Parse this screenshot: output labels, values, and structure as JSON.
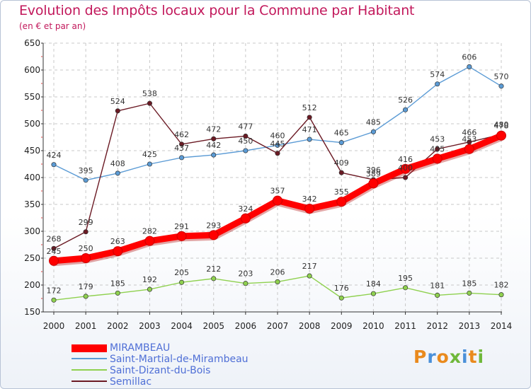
{
  "title": "Evolution des Impôts locaux pour la Commune par Habitant",
  "subtitle": "(en € et par an)",
  "logo": {
    "letters": [
      "P",
      "r",
      "o",
      "x",
      "i",
      "t",
      "i"
    ],
    "colors": [
      "#e98a1d",
      "#4a90d9",
      "#e98a1d",
      "#6fb83a",
      "#4a90d9",
      "#e98a1d",
      "#6fb83a"
    ]
  },
  "chart_data": {
    "type": "line",
    "title": "Evolution des Impôts locaux pour la Commune par Habitant",
    "subtitle": "(en € et par an)",
    "xlabel": "",
    "ylabel": "",
    "x": [
      "2000",
      "2001",
      "2002",
      "2003",
      "2004",
      "2005",
      "2006",
      "2007",
      "2008",
      "2009",
      "2010",
      "2011",
      "2012",
      "2013",
      "2014"
    ],
    "ylim": [
      150,
      650
    ],
    "yticks": [
      150,
      200,
      250,
      300,
      350,
      400,
      450,
      500,
      550,
      600,
      650
    ],
    "grid": true,
    "series": [
      {
        "name": "Saint-Dizant-du-Bois",
        "color": "#8fd14f",
        "values": [
          172,
          179,
          185,
          192,
          205,
          212,
          203,
          206,
          217,
          176,
          184,
          195,
          181,
          185,
          182
        ]
      },
      {
        "name": "Saint-Martial-de-Mirambeau",
        "color": "#5b9bd5",
        "values": [
          424,
          395,
          408,
          425,
          437,
          442,
          450,
          460,
          471,
          465,
          485,
          526,
          574,
          606,
          570
        ]
      },
      {
        "name": "Semillac",
        "color": "#6b1a24",
        "values": [
          268,
          299,
          524,
          538,
          462,
          472,
          477,
          445,
          512,
          409,
          396,
          400,
          453,
          466,
          480
        ]
      },
      {
        "name": "MIRAMBEAU",
        "color": "#ff0000",
        "values": [
          245,
          250,
          263,
          282,
          291,
          293,
          324,
          357,
          342,
          355,
          389,
          416,
          435,
          453,
          478
        ]
      }
    ],
    "legend": [
      "MIRAMBEAU",
      "Saint-Martial-de-Mirambeau",
      "Saint-Dizant-du-Bois",
      "Semillac"
    ],
    "legend_position": "bottom-left"
  }
}
